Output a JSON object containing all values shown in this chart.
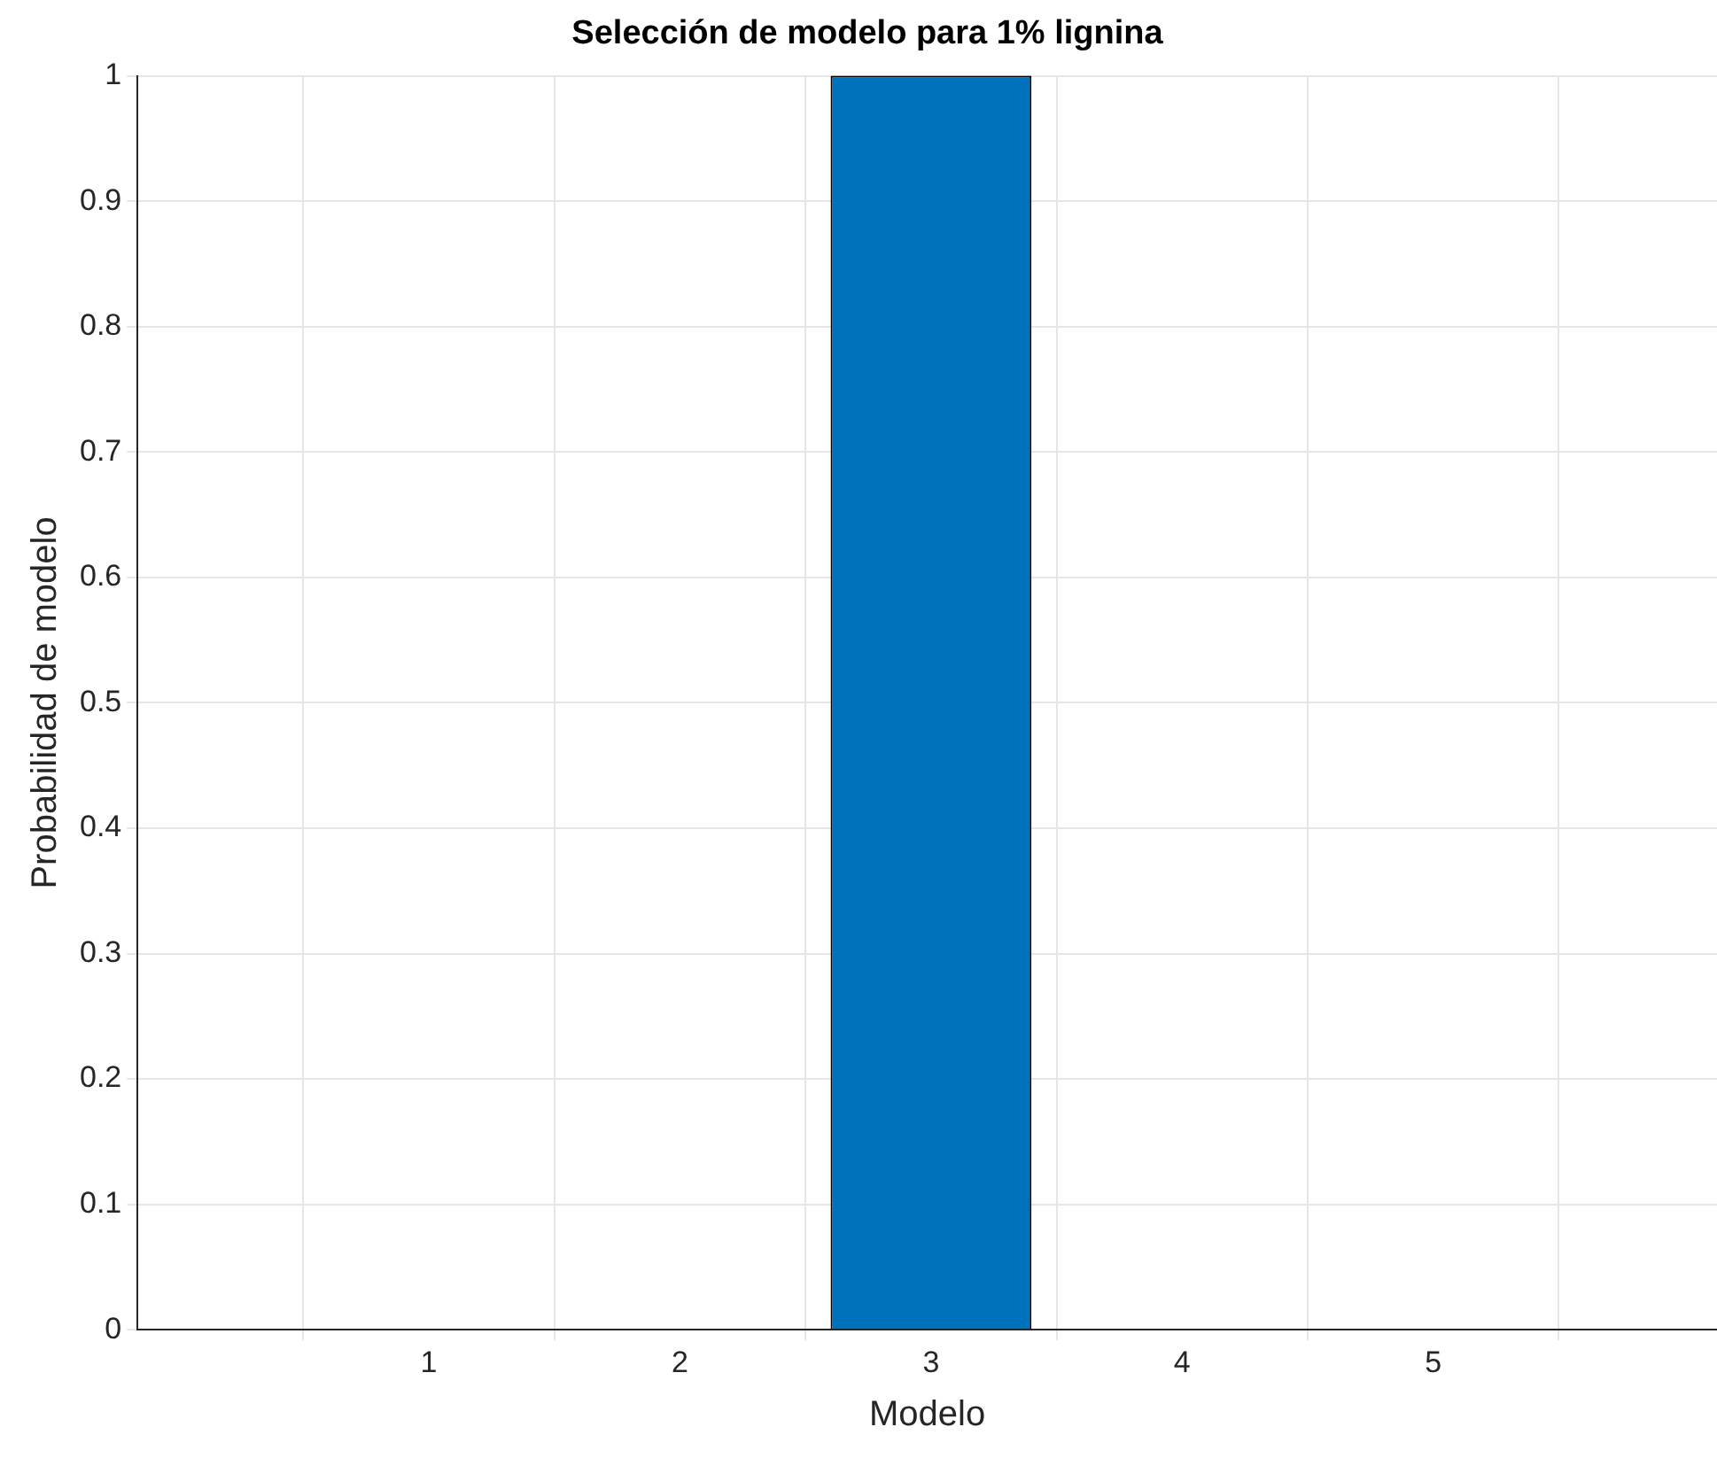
{
  "chart_data": {
    "type": "bar",
    "title": "Selección de modelo para 1% lignina",
    "xlabel": "Modelo",
    "ylabel": "Probabilidad de modelo",
    "x": [
      1,
      2,
      3,
      4,
      5
    ],
    "values": [
      0,
      0,
      1,
      0,
      0
    ],
    "color": "#0072bd",
    "xlim": [
      -0.16,
      6.13
    ],
    "xticks": [
      1,
      2,
      3,
      4,
      5
    ],
    "ylim": [
      0,
      1
    ],
    "yticks": [
      0,
      0.1,
      0.2,
      0.3,
      0.4,
      0.5,
      0.6,
      0.7,
      0.8,
      0.9,
      1
    ],
    "grid": true,
    "legend": false
  }
}
